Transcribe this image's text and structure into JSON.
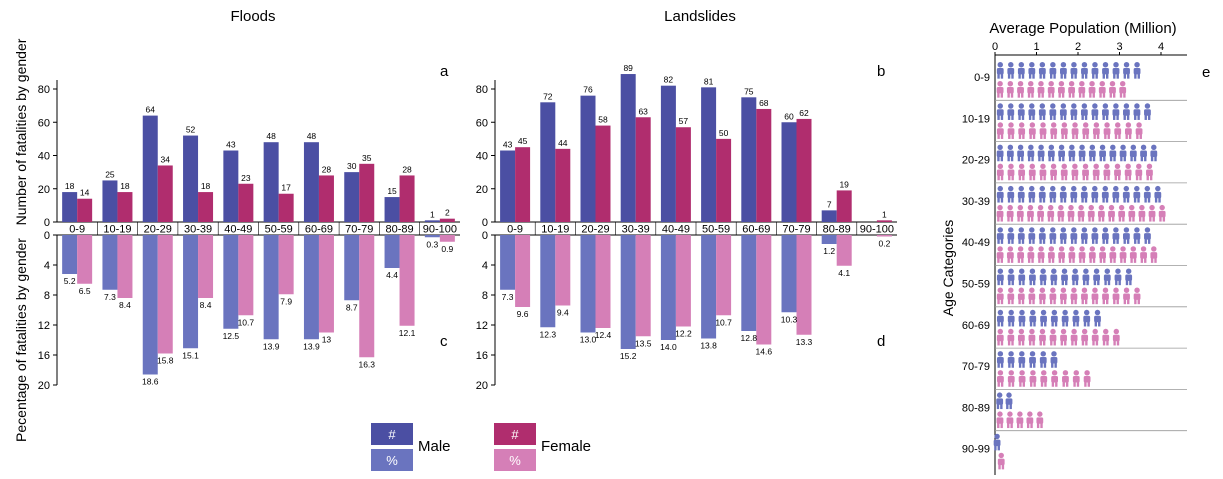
{
  "colors": {
    "male_count": "#4b4fa3",
    "female_count": "#b02d6e",
    "male_pct": "#6a74bf",
    "female_pct": "#d57fb7"
  },
  "icons": {
    "male": "person-icon",
    "female": "person-icon"
  },
  "figure": {
    "ylabel_top": "Number of fatalities by gender",
    "ylabel_bottom": "Pecentage of fatalities by gender",
    "legend": {
      "count_symbol": "#",
      "pct_symbol": "%",
      "male": "Male",
      "female": "Female"
    }
  },
  "chart_data": [
    {
      "panel": "a",
      "type": "bar",
      "title": "Floods",
      "categories": [
        "0-9",
        "10-19",
        "20-29",
        "30-39",
        "40-49",
        "50-59",
        "60-69",
        "70-79",
        "80-89",
        "90-100"
      ],
      "ylim": [
        0,
        90
      ],
      "yticks": [
        0,
        20,
        40,
        60,
        80
      ],
      "series": [
        {
          "name": "Male",
          "values": [
            18,
            25,
            64,
            52,
            43,
            48,
            48,
            30,
            15,
            1
          ]
        },
        {
          "name": "Female",
          "values": [
            14,
            18,
            34,
            18,
            23,
            17,
            28,
            35,
            28,
            2
          ]
        }
      ]
    },
    {
      "panel": "c",
      "type": "bar",
      "categories": [
        "0-9",
        "10-19",
        "20-29",
        "30-39",
        "40-49",
        "50-59",
        "60-69",
        "70-79",
        "80-89",
        "90-100"
      ],
      "ylim": [
        0,
        20
      ],
      "yticks": [
        0,
        4,
        8,
        12,
        16,
        20
      ],
      "series": [
        {
          "name": "Male",
          "values": [
            5.2,
            7.3,
            18.6,
            15.1,
            12.5,
            13.9,
            13.9,
            8.7,
            4.4,
            0.3
          ]
        },
        {
          "name": "Female",
          "values": [
            6.5,
            8.4,
            15.8,
            8.4,
            10.7,
            7.9,
            13,
            16.3,
            12.1,
            0.9
          ]
        }
      ]
    },
    {
      "panel": "b",
      "type": "bar",
      "title": "Landslides",
      "categories": [
        "0-9",
        "10-19",
        "20-29",
        "30-39",
        "40-49",
        "50-59",
        "60-69",
        "70-79",
        "80-89",
        "90-100"
      ],
      "ylim": [
        0,
        90
      ],
      "yticks": [
        0,
        20,
        40,
        60,
        80
      ],
      "series": [
        {
          "name": "Male",
          "values": [
            43,
            72,
            76,
            89,
            82,
            81,
            75,
            60,
            7,
            0
          ]
        },
        {
          "name": "Female",
          "values": [
            45,
            44,
            58,
            63,
            57,
            50,
            68,
            62,
            19,
            1
          ]
        }
      ]
    },
    {
      "panel": "d",
      "type": "bar",
      "categories": [
        "0-9",
        "10-19",
        "20-29",
        "30-39",
        "40-49",
        "50-59",
        "60-69",
        "70-79",
        "80-89",
        "90-100"
      ],
      "ylim": [
        0,
        20
      ],
      "yticks": [
        0,
        4,
        8,
        12,
        16,
        20
      ],
      "series": [
        {
          "name": "Male",
          "values": [
            7.3,
            12.3,
            13.0,
            15.2,
            14.0,
            13.8,
            12.8,
            10.3,
            1.2,
            0
          ]
        },
        {
          "name": "Female",
          "values": [
            9.6,
            9.4,
            12.4,
            13.5,
            12.2,
            10.7,
            14.6,
            13.3,
            4.1,
            0.2
          ]
        }
      ],
      "value_labels": {
        "Male": [
          "7.3",
          "12.3",
          "13.0",
          "15.2",
          "14.0",
          "13.8",
          "12.8",
          "10.3",
          "1.2",
          ""
        ],
        "Female": [
          "9.6",
          "9.4",
          "12.4",
          "13.5",
          "12.2",
          "10.7",
          "14.6",
          "13.3",
          "4.1",
          "0.2"
        ]
      }
    },
    {
      "panel": "e",
      "type": "bar",
      "title": "Average Population (Million)",
      "ylabel": "Age Categories",
      "categories": [
        "0-9",
        "10-19",
        "20-29",
        "30-39",
        "40-49",
        "50-59",
        "60-69",
        "70-79",
        "80-89",
        "90-99"
      ],
      "xlim": [
        0,
        4.5
      ],
      "xticks": [
        0,
        1,
        2,
        3,
        4
      ],
      "series": [
        {
          "name": "Male",
          "values": [
            3.55,
            3.8,
            3.95,
            4.05,
            3.8,
            3.35,
            2.6,
            1.55,
            0.45,
            0.1
          ]
        },
        {
          "name": "Female",
          "values": [
            3.2,
            3.6,
            3.85,
            4.15,
            3.95,
            3.55,
            3.05,
            2.35,
            1.2,
            0.3
          ]
        }
      ]
    }
  ]
}
